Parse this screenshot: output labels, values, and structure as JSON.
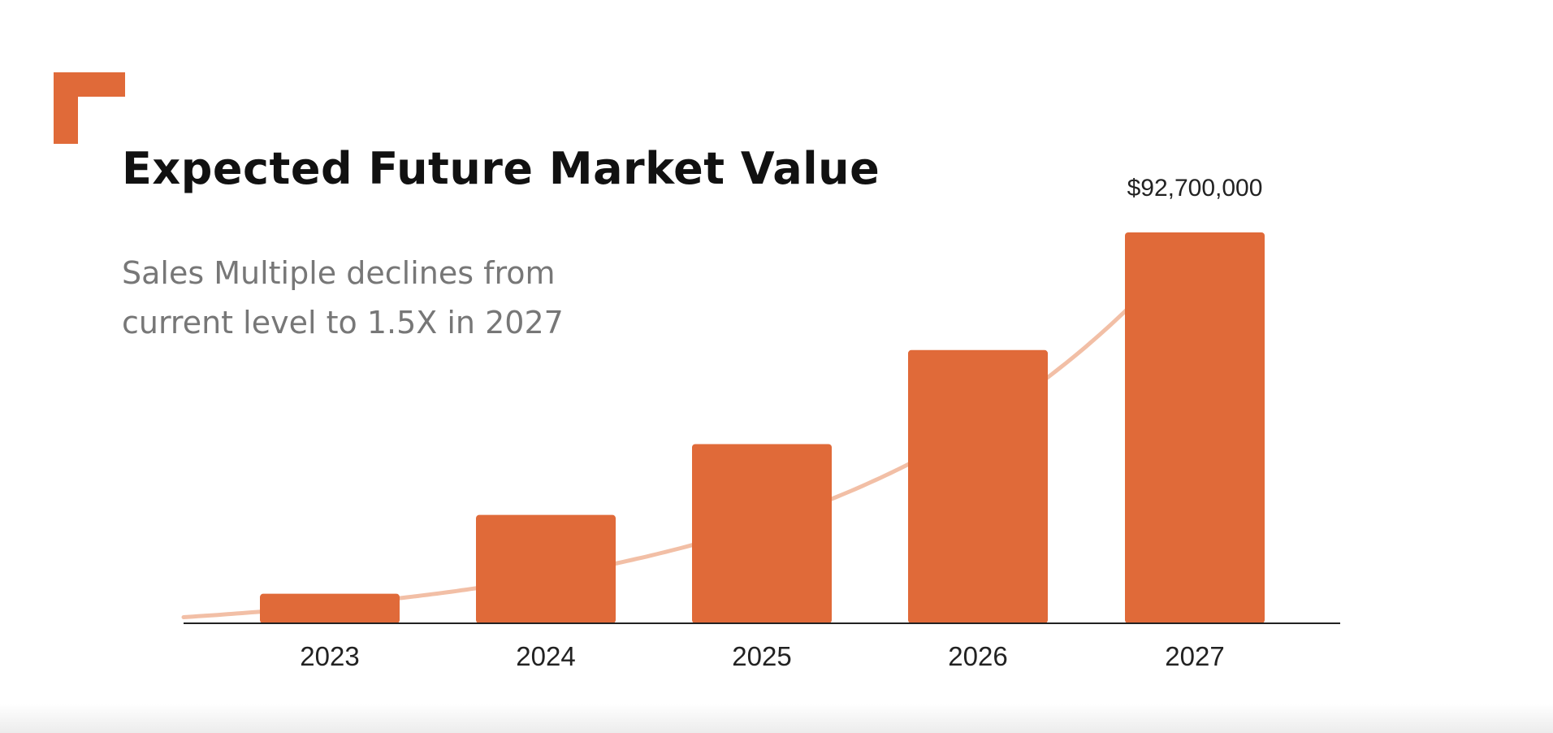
{
  "colors": {
    "accent": "#e06a39",
    "trend": "#f2bfa6",
    "axis": "#222222"
  },
  "chart_data": {
    "type": "bar",
    "title": "Expected Future Market Value",
    "subtitle_lines": [
      "Sales Multiple declines from",
      "current level to 1.5X in 2027"
    ],
    "categories": [
      "2023",
      "2024",
      "2025",
      "2026",
      "2027"
    ],
    "values": [
      7000000,
      25700000,
      42500000,
      64800000,
      92700000
    ],
    "data_labels": [
      null,
      null,
      null,
      null,
      "$92,700,000"
    ],
    "trendline": "exponential",
    "ylim": [
      0,
      92700000
    ],
    "xlabel": "",
    "ylabel": "",
    "grid": false
  }
}
